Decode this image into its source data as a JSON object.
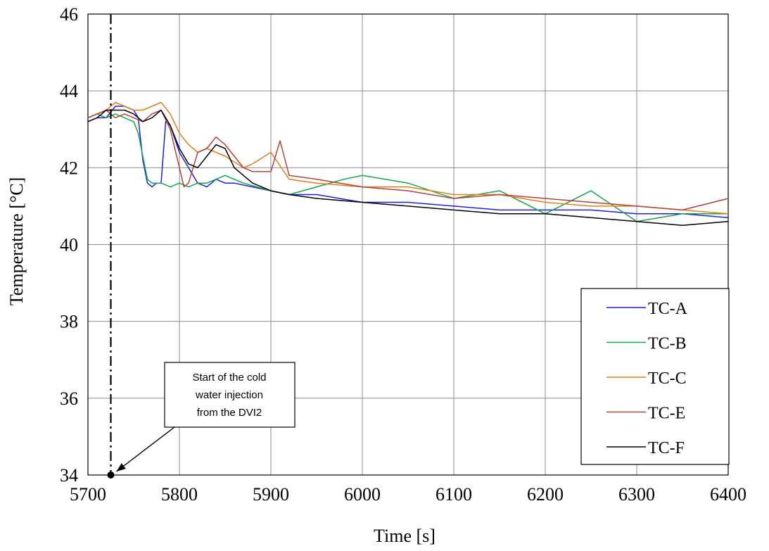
{
  "chart_data": {
    "type": "line",
    "xlabel": "Time [s]",
    "ylabel": "Temperature [°C]",
    "xlim": [
      5700,
      6400
    ],
    "ylim": [
      34,
      46
    ],
    "x_ticks": [
      "5700",
      "5800",
      "5900",
      "6000",
      "6100",
      "6200",
      "6300",
      "6400"
    ],
    "y_ticks": [
      "34",
      "36",
      "38",
      "40",
      "42",
      "44",
      "46"
    ],
    "grid": true,
    "legend_position": "bottom-right",
    "annotation": {
      "lines": [
        "Start of the cold",
        "water injection",
        "from the DVI2"
      ],
      "x": 5725,
      "y": 34
    },
    "series": [
      {
        "name": "TC-A",
        "color": "#1f1fd6",
        "x": [
          5700,
          5710,
          5720,
          5730,
          5740,
          5750,
          5755,
          5760,
          5765,
          5770,
          5775,
          5780,
          5785,
          5790,
          5800,
          5810,
          5820,
          5830,
          5840,
          5850,
          5860,
          5880,
          5900,
          5920,
          5950,
          6000,
          6050,
          6100,
          6150,
          6200,
          6250,
          6300,
          6350,
          6400
        ],
        "values": [
          43.2,
          43.3,
          43.3,
          43.6,
          43.6,
          43.5,
          43.3,
          42.2,
          41.6,
          41.5,
          41.6,
          41.6,
          43.2,
          43.1,
          42.4,
          42.0,
          41.6,
          41.5,
          41.7,
          41.6,
          41.6,
          41.5,
          41.4,
          41.3,
          41.3,
          41.1,
          41.1,
          41.0,
          40.9,
          40.9,
          40.9,
          40.8,
          40.8,
          40.7
        ]
      },
      {
        "name": "TC-B",
        "color": "#14a84a",
        "x": [
          5700,
          5710,
          5720,
          5730,
          5740,
          5750,
          5755,
          5760,
          5765,
          5770,
          5780,
          5790,
          5800,
          5810,
          5820,
          5830,
          5850,
          5870,
          5900,
          5920,
          5950,
          5980,
          6000,
          6050,
          6100,
          6150,
          6200,
          6250,
          6300,
          6350,
          6400
        ],
        "values": [
          43.3,
          43.4,
          43.3,
          43.4,
          43.3,
          43.2,
          42.9,
          42.3,
          41.7,
          41.6,
          41.6,
          41.5,
          41.6,
          41.5,
          41.6,
          41.6,
          41.8,
          41.6,
          41.4,
          41.3,
          41.5,
          41.7,
          41.8,
          41.6,
          41.2,
          41.4,
          40.8,
          41.4,
          40.6,
          40.8,
          40.8
        ]
      },
      {
        "name": "TC-C",
        "color": "#e57c1a",
        "x": [
          5700,
          5710,
          5720,
          5730,
          5740,
          5750,
          5760,
          5770,
          5780,
          5790,
          5800,
          5810,
          5820,
          5830,
          5850,
          5870,
          5880,
          5900,
          5920,
          5950,
          6000,
          6050,
          6100,
          6150,
          6200,
          6250,
          6300,
          6350,
          6400
        ],
        "values": [
          43.3,
          43.4,
          43.5,
          43.7,
          43.6,
          43.5,
          43.5,
          43.6,
          43.7,
          43.4,
          42.9,
          42.6,
          42.4,
          42.5,
          42.3,
          42.0,
          42.1,
          42.4,
          41.7,
          41.6,
          41.5,
          41.5,
          41.3,
          41.3,
          41.1,
          41.0,
          41.0,
          40.9,
          40.8
        ]
      },
      {
        "name": "TC-E",
        "color": "#b0443a",
        "x": [
          5700,
          5710,
          5720,
          5730,
          5740,
          5750,
          5760,
          5770,
          5780,
          5790,
          5800,
          5805,
          5810,
          5820,
          5830,
          5840,
          5850,
          5860,
          5870,
          5880,
          5900,
          5910,
          5920,
          5950,
          6000,
          6050,
          6100,
          6150,
          6200,
          6250,
          6300,
          6350,
          6400
        ],
        "values": [
          43.3,
          43.4,
          43.5,
          43.3,
          43.4,
          43.3,
          43.2,
          43.4,
          43.5,
          43.0,
          42.0,
          41.5,
          41.6,
          42.4,
          42.5,
          42.8,
          42.6,
          42.3,
          42.0,
          41.9,
          41.9,
          42.7,
          41.8,
          41.7,
          41.5,
          41.4,
          41.2,
          41.3,
          41.2,
          41.1,
          41.0,
          40.9,
          41.2
        ]
      },
      {
        "name": "TC-F",
        "color": "#000000",
        "x": [
          5700,
          5710,
          5720,
          5730,
          5740,
          5750,
          5760,
          5770,
          5780,
          5790,
          5800,
          5810,
          5820,
          5830,
          5840,
          5850,
          5860,
          5870,
          5880,
          5900,
          5920,
          5950,
          6000,
          6050,
          6100,
          6150,
          6200,
          6250,
          6300,
          6350,
          6400
        ],
        "values": [
          43.2,
          43.3,
          43.5,
          43.5,
          43.5,
          43.4,
          43.2,
          43.3,
          43.5,
          43.1,
          42.5,
          42.1,
          42.0,
          42.3,
          42.6,
          42.5,
          42.0,
          41.8,
          41.6,
          41.4,
          41.3,
          41.2,
          41.1,
          41.0,
          40.9,
          40.8,
          40.8,
          40.7,
          40.6,
          40.5,
          40.6
        ]
      }
    ]
  }
}
